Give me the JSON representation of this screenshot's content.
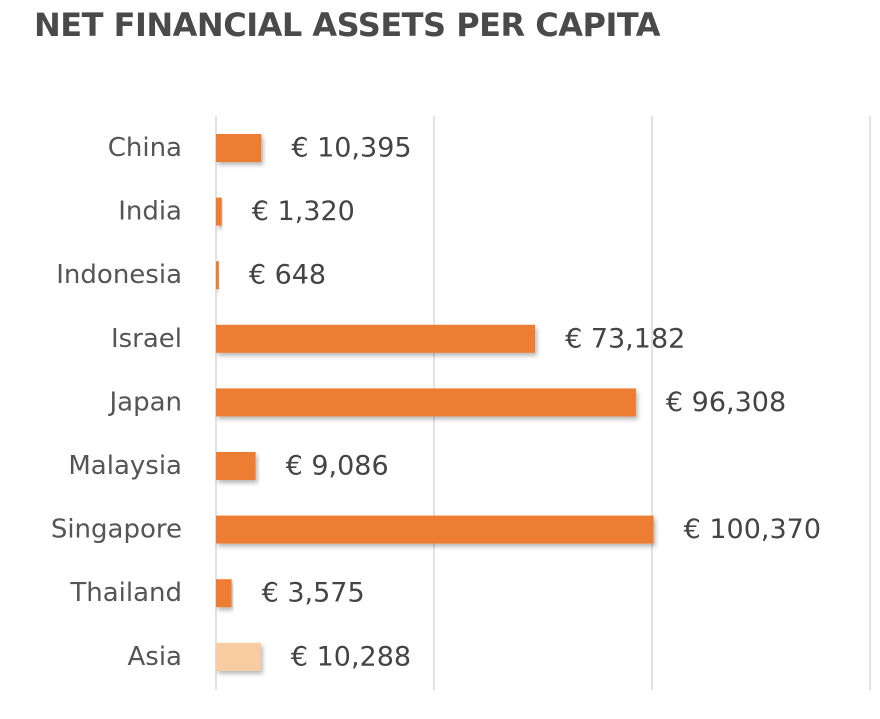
{
  "chart_data": {
    "type": "bar",
    "orientation": "horizontal",
    "title": "NET FINANCIAL ASSETS PER CAPITA",
    "categories": [
      "China",
      "India",
      "Indonesia",
      "Israel",
      "Japan",
      "Malaysia",
      "Singapore",
      "Thailand",
      "Asia"
    ],
    "values": [
      10395,
      1320,
      648,
      73182,
      96308,
      9086,
      100370,
      3575,
      10288
    ],
    "value_labels": [
      "€ 10,395",
      "€ 1,320",
      "€ 648",
      "€ 73,182",
      "€ 96,308",
      "€ 9,086",
      "€ 100,370",
      "€ 3,575",
      "€ 10,288"
    ],
    "xlim": [
      0,
      150000
    ],
    "grid": true,
    "legend": "none",
    "colors": {
      "bar": "#ed7d31",
      "highlight_bar": "#f8cba0",
      "gridline": "#d9d9d9",
      "title": "#4a4a4a",
      "label": "#555555"
    },
    "highlight_category": "Asia"
  }
}
